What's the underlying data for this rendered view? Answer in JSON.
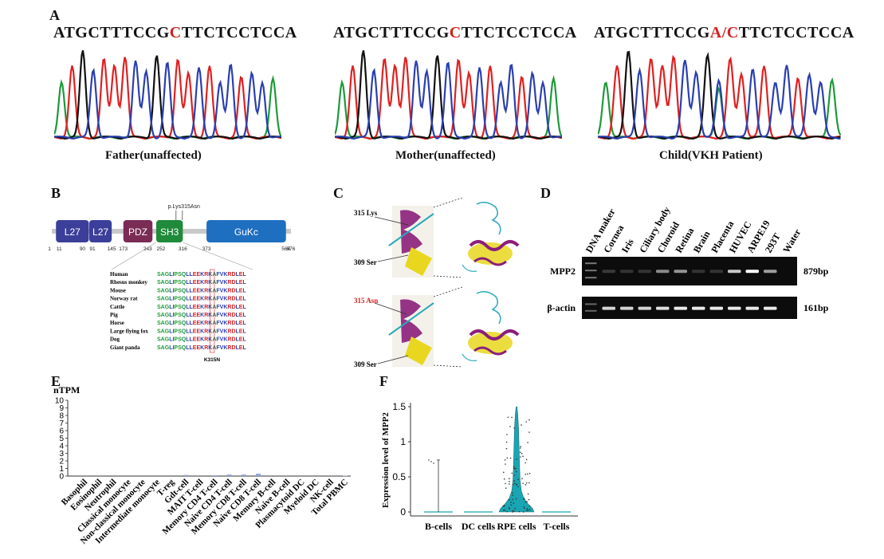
{
  "panels": {
    "a": "A",
    "b": "B",
    "c": "C",
    "d": "D",
    "e": "E",
    "f": "F"
  },
  "panelA": {
    "traces": [
      {
        "seq_pre": "ATGCTTTCCG",
        "seq_mut": "C",
        "seq_post": "TTCTCCTCCA",
        "caption": "Father(unaffected)"
      },
      {
        "seq_pre": "ATGCTTTCCG",
        "seq_mut": "C",
        "seq_post": "TTCTCCTCCA",
        "caption": "Mother(unaffected)"
      },
      {
        "seq_pre": "ATGCTTTCCG",
        "seq_mut": "A/C",
        "seq_post": "TTCTCCTCCA",
        "caption": "Child(VKH Patient)"
      }
    ],
    "colors": {
      "A": "#1d9a3a",
      "C": "#2a3fb0",
      "G": "#111111",
      "T": "#e02020"
    }
  },
  "panelB": {
    "mutation_label": "p.Lys315Asn",
    "domains": [
      {
        "name": "L27",
        "start": 11,
        "end": 90,
        "color": "#3b3f99"
      },
      {
        "name": "L27",
        "start": 91,
        "end": 145,
        "color": "#3b3f99"
      },
      {
        "name": "PDZ",
        "start": 173,
        "end": 243,
        "color": "#7a2c55"
      },
      {
        "name": "SH3",
        "start": 252,
        "end": 316,
        "color": "#1f8a3a"
      },
      {
        "name": "GuKc",
        "start": 373,
        "end": 564,
        "color": "#1f6fc0"
      }
    ],
    "ticks": [
      "1",
      "11",
      "90",
      "91",
      "145",
      "173",
      "243",
      "252",
      "316",
      "373",
      "564",
      "576"
    ],
    "species": [
      "Human",
      "Rhesus monkey",
      "Mouse",
      "Norway rat",
      "Cattle",
      "Pig",
      "Horse",
      "Large flying fox",
      "Dog",
      "Giant panda"
    ],
    "alignment_seq": "SAGLIPSQLLEEKRKAFVKRDLEL",
    "highlight_index": 13,
    "variant_label": "K315N"
  },
  "panelC": {
    "top_labels": [
      "315 Lys",
      "309 Ser"
    ],
    "bottom_labels": [
      "315 Asn",
      "309 Ser"
    ]
  },
  "panelD": {
    "lanes": [
      "DNA maker",
      "Cornea",
      "Iris",
      "Ciliary body",
      "Choroid",
      "Retina",
      "Brain",
      "Placenta",
      "HUVEC",
      "ARPE19",
      "293T",
      "Water"
    ],
    "rows": [
      {
        "name": "MPP2",
        "size": "879bp",
        "intensity": [
          0,
          0.08,
          0.05,
          0.05,
          0.45,
          0.5,
          0.05,
          0.05,
          0.75,
          1.0,
          0.55,
          0
        ]
      },
      {
        "name": "β-actin",
        "size": "161bp",
        "intensity": [
          0,
          0.8,
          0.8,
          0.8,
          0.85,
          0.9,
          0.9,
          0.9,
          0.9,
          0.9,
          0.9,
          0
        ]
      }
    ]
  },
  "panelE": {
    "ylabel": "nTPM",
    "yticks": [
      "0",
      "1",
      "2",
      "3",
      "4",
      "5",
      "6",
      "7",
      "8",
      "9",
      "10"
    ],
    "ylim": [
      0,
      10
    ],
    "categories": [
      "Basophil",
      "Eosinophil",
      "Neutrophil",
      "Classical monocyte",
      "Non-classical monocyte",
      "Intermediate monocyte",
      "T-reg",
      "Gdt-cell",
      "MAIT T-cell",
      "Memory CD4 T-cell",
      "Naive CD4 T-cell",
      "Memory CD8 T-cell",
      "Naive CD8 T-cell",
      "Memory B-cell",
      "Naive B-cell",
      "Plasmacytoid DC",
      "Myeloid DC",
      "NK-cell",
      "Total PBMC"
    ],
    "values": [
      0,
      0,
      0,
      0,
      0,
      0,
      0,
      0.15,
      0,
      0.1,
      0.2,
      0.2,
      0.3,
      0,
      0,
      0,
      0,
      0,
      0.05
    ]
  },
  "panelF": {
    "ylabel": "Expression level of MPP2",
    "yticks": [
      "0",
      "0.5",
      "1",
      "1.5"
    ],
    "ylim": [
      0,
      1.5
    ],
    "categories": [
      "B-cells",
      "DC cells",
      "RPE cells",
      "T-cells"
    ],
    "color": "#19a5b3"
  }
}
